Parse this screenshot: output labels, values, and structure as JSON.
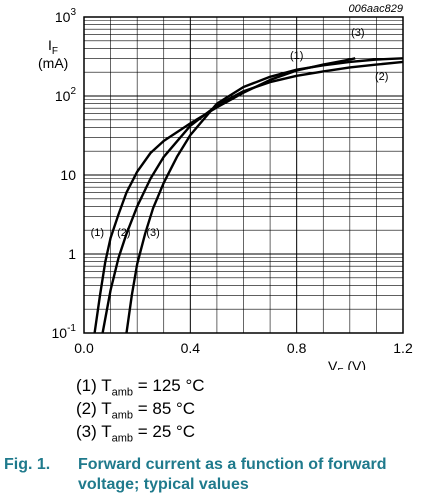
{
  "chart_data": {
    "type": "line",
    "id_label": "006aac829",
    "x_axis": {
      "label_main": "V",
      "label_sub": "F",
      "label_unit": " (V)",
      "range": [
        0.0,
        1.2
      ],
      "ticks": [
        "0.0",
        "0.4",
        "0.8",
        "1.2"
      ],
      "tick_values": [
        0.0,
        0.4,
        0.8,
        1.2
      ]
    },
    "y_axis": {
      "label_main": "I",
      "label_sub": "F",
      "label_unit": "(mA)",
      "scale": "log",
      "range": [
        0.1,
        1000
      ],
      "tick_labels": [
        {
          "value": 1000,
          "base": "10",
          "exp": "3"
        },
        {
          "value": 100,
          "base": "10",
          "exp": "2"
        },
        {
          "value": 10,
          "base": "10",
          "exp": ""
        },
        {
          "value": 1,
          "base": "1",
          "exp": ""
        },
        {
          "value": 0.1,
          "base": "10",
          "exp": "-1"
        }
      ]
    },
    "grid": true,
    "series": [
      {
        "name": "(1)",
        "x": [
          0.04,
          0.06,
          0.08,
          0.1,
          0.13,
          0.16,
          0.2,
          0.25,
          0.3,
          0.4,
          0.5,
          0.6,
          0.7,
          0.8,
          0.9,
          1.0,
          1.02
        ],
        "y": [
          0.1,
          0.3,
          0.8,
          1.6,
          3.2,
          6.0,
          11,
          19,
          27,
          45,
          72,
          110,
          160,
          210,
          250,
          290,
          300
        ]
      },
      {
        "name": "(2)",
        "x": [
          0.07,
          0.1,
          0.13,
          0.16,
          0.2,
          0.25,
          0.3,
          0.4,
          0.5,
          0.6,
          0.7,
          0.8,
          0.9,
          1.0,
          1.1,
          1.2
        ],
        "y": [
          0.1,
          0.35,
          0.9,
          1.8,
          4.0,
          9.0,
          17,
          42,
          76,
          115,
          150,
          180,
          205,
          230,
          250,
          270
        ]
      },
      {
        "name": "(3)",
        "x": [
          0.16,
          0.18,
          0.2,
          0.23,
          0.26,
          0.3,
          0.35,
          0.4,
          0.5,
          0.6,
          0.7,
          0.8,
          0.9,
          1.0,
          1.1,
          1.2
        ],
        "y": [
          0.1,
          0.3,
          0.75,
          1.8,
          3.8,
          8.0,
          17,
          32,
          80,
          130,
          175,
          215,
          245,
          270,
          290,
          300
        ]
      }
    ],
    "curve_labels": [
      {
        "text": "(1)",
        "x": 0.8,
        "y": 330
      },
      {
        "text": "(3)",
        "x": 1.03,
        "y": 650
      },
      {
        "text": "(2)",
        "x": 1.12,
        "y": 180
      },
      {
        "text": "(1)",
        "x": 0.05,
        "y": 1.9
      },
      {
        "text": "(2)",
        "x": 0.15,
        "y": 1.9
      },
      {
        "text": "(3)",
        "x": 0.26,
        "y": 1.9
      }
    ]
  },
  "legend": [
    {
      "prefix": "(1) T",
      "sub": "amb",
      "suffix": " = 125 °C"
    },
    {
      "prefix": "(2) T",
      "sub": "amb",
      "suffix": " = 85 °C"
    },
    {
      "prefix": "(3) T",
      "sub": "amb",
      "suffix": " = 25 °C"
    }
  ],
  "caption": {
    "number": "Fig. 1.",
    "text": "Forward current as a function of forward voltage; typical values"
  }
}
